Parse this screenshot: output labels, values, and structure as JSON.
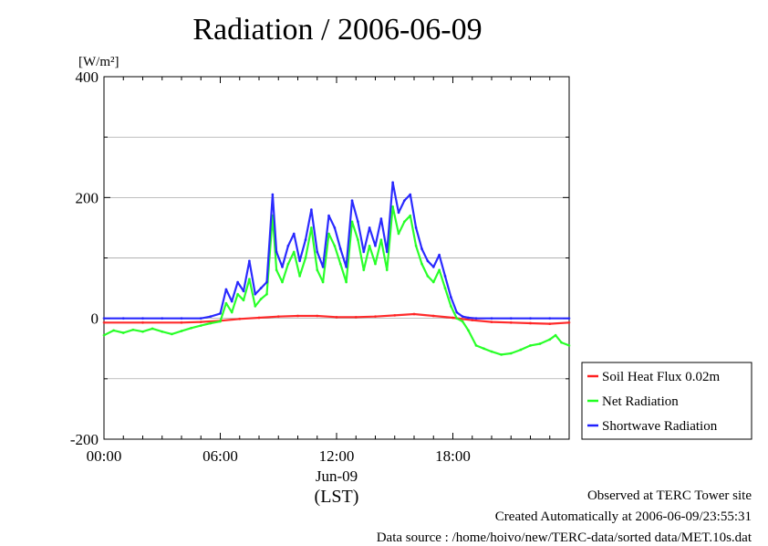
{
  "chart_data": {
    "type": "line",
    "title": "Radiation / 2006-06-09",
    "ylabel": "[W/m²]",
    "xlabel": "(LST)",
    "xlabel_date": "Jun-09",
    "x_unit": "hour (LST)",
    "xlim": [
      0,
      24
    ],
    "ylim": [
      -200,
      400
    ],
    "y_ticks": [
      -200,
      0,
      200,
      400
    ],
    "x_ticks": [
      0,
      6,
      12,
      18
    ],
    "x_tick_labels": [
      "00:00",
      "06:00",
      "12:00",
      "18:00"
    ],
    "grid": true,
    "legend_position": "right-bottom",
    "series": [
      {
        "name": "Soil Heat Flux 0.02m",
        "color": "#ff2020",
        "x": [
          0,
          2,
          4,
          5,
          6,
          7,
          8,
          9,
          10,
          11,
          12,
          13,
          14,
          15,
          16,
          17,
          18,
          19,
          20,
          21,
          22,
          23,
          24
        ],
        "y": [
          -7,
          -7,
          -7,
          -6,
          -4,
          -1,
          1,
          3,
          4,
          4,
          2,
          2,
          3,
          5,
          7,
          4,
          1,
          -3,
          -6,
          -7,
          -8,
          -9,
          -7
        ]
      },
      {
        "name": "Net Radiation",
        "color": "#20ff20",
        "x": [
          0,
          0.5,
          1,
          1.5,
          2,
          2.5,
          3,
          3.5,
          4,
          4.5,
          5,
          5.5,
          6,
          6.3,
          6.6,
          6.9,
          7.2,
          7.5,
          7.8,
          8.1,
          8.4,
          8.7,
          8.9,
          9.2,
          9.5,
          9.8,
          10.1,
          10.4,
          10.7,
          11,
          11.3,
          11.6,
          11.9,
          12.2,
          12.5,
          12.8,
          13.1,
          13.4,
          13.7,
          14,
          14.3,
          14.6,
          14.9,
          15.2,
          15.5,
          15.8,
          16.1,
          16.4,
          16.7,
          17,
          17.3,
          17.6,
          17.9,
          18.2,
          18.5,
          18.8,
          19.2,
          19.6,
          20,
          20.5,
          21,
          21.5,
          22,
          22.5,
          23,
          23.3,
          23.6,
          24
        ],
        "y": [
          -28,
          -20,
          -24,
          -19,
          -22,
          -17,
          -22,
          -26,
          -21,
          -16,
          -12,
          -8,
          -5,
          25,
          10,
          40,
          30,
          65,
          20,
          32,
          40,
          170,
          80,
          60,
          90,
          110,
          70,
          100,
          150,
          80,
          60,
          140,
          120,
          90,
          60,
          160,
          130,
          80,
          120,
          90,
          130,
          80,
          185,
          140,
          160,
          170,
          120,
          90,
          70,
          60,
          80,
          50,
          20,
          0,
          -5,
          -20,
          -45,
          -50,
          -55,
          -60,
          -58,
          -52,
          -45,
          -42,
          -35,
          -28,
          -40,
          -45
        ]
      },
      {
        "name": "Shortwave Radiation",
        "color": "#2020ff",
        "x": [
          0,
          1,
          2,
          3,
          4,
          5,
          5.5,
          6,
          6.3,
          6.6,
          6.9,
          7.2,
          7.5,
          7.8,
          8.1,
          8.4,
          8.7,
          8.9,
          9.2,
          9.5,
          9.8,
          10.1,
          10.4,
          10.7,
          11,
          11.3,
          11.6,
          11.9,
          12.2,
          12.5,
          12.8,
          13.1,
          13.4,
          13.7,
          14,
          14.3,
          14.6,
          14.9,
          15.2,
          15.5,
          15.8,
          16.1,
          16.4,
          16.7,
          17,
          17.3,
          17.6,
          17.9,
          18.2,
          18.5,
          18.8,
          19.2,
          20,
          21,
          22,
          23,
          24
        ],
        "y": [
          0,
          0,
          0,
          0,
          0,
          0,
          3,
          8,
          48,
          28,
          60,
          45,
          95,
          40,
          50,
          60,
          205,
          110,
          85,
          120,
          140,
          95,
          130,
          180,
          110,
          85,
          170,
          150,
          115,
          85,
          195,
          160,
          110,
          150,
          120,
          165,
          110,
          225,
          175,
          195,
          205,
          150,
          115,
          95,
          85,
          105,
          70,
          35,
          10,
          3,
          1,
          0,
          0,
          0,
          0,
          0,
          0
        ]
      }
    ]
  },
  "footer": {
    "line1": "Observed at TERC Tower site",
    "line2": "Created Automatically at 2006-06-09/23:55:31",
    "line3": "Data source : /home/hoivo/new/TERC-data/sorted  data/MET.10s.dat"
  }
}
